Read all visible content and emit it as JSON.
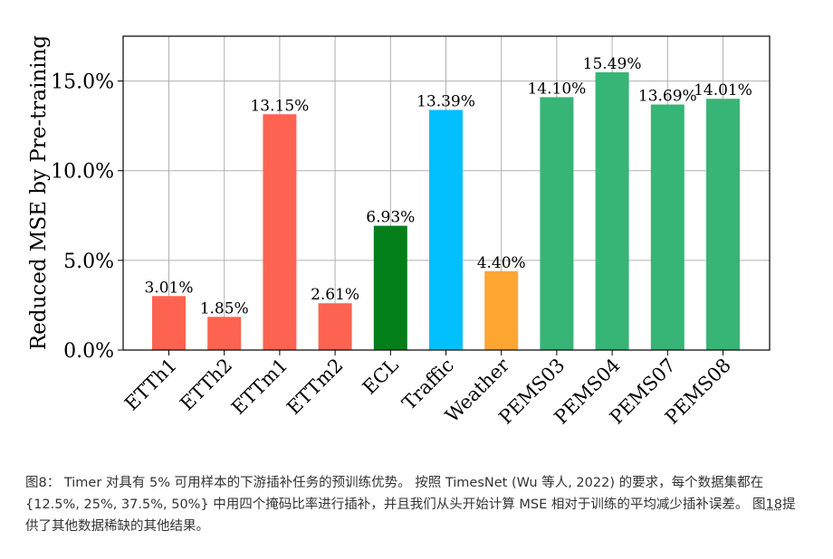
{
  "chart_data": {
    "type": "bar",
    "title": "",
    "xlabel": "",
    "ylabel": "Reduced MSE by Pre-training",
    "ylim": [
      0,
      17.5
    ],
    "yticks": [
      "0.0%",
      "5.0%",
      "10.0%",
      "15.0%"
    ],
    "ytick_values": [
      0,
      5,
      10,
      15
    ],
    "grid": true,
    "legend": "none",
    "categories": [
      "ETTh1",
      "ETTh2",
      "ETTm1",
      "ETTm2",
      "ECL",
      "Traffic",
      "Weather",
      "PEMS03",
      "PEMS04",
      "PEMS07",
      "PEMS08"
    ],
    "values": [
      3.01,
      1.85,
      13.15,
      2.61,
      6.93,
      13.39,
      4.4,
      14.1,
      15.49,
      13.69,
      14.01
    ],
    "data_labels": [
      "3.01%",
      "1.85%",
      "13.15%",
      "2.61%",
      "6.93%",
      "13.39%",
      "4.40%",
      "14.10%",
      "15.49%",
      "13.69%",
      "14.01%"
    ],
    "colors": [
      "#fe6351",
      "#fe6351",
      "#fe6351",
      "#fe6351",
      "#037f1a",
      "#02bffe",
      "#fea532",
      "#36b576",
      "#36b576",
      "#36b576",
      "#36b576"
    ]
  },
  "caption": {
    "prefix": "图8：",
    "text1": " Timer 对具有 5% 可用样本的下游插补任务的预训练优势。 按照 TimesNet (Wu 等人, 2022) 的要求，每个数据集都在 {12.5%, 25%, 37.5%, 50%} 中用四个掩码比率进行插补，并且我们从头开始计算 MSE 相对于训练的平均减少插补误差。 图",
    "ref": "18",
    "text2": "提供了其他数据稀缺的其他结果。"
  }
}
